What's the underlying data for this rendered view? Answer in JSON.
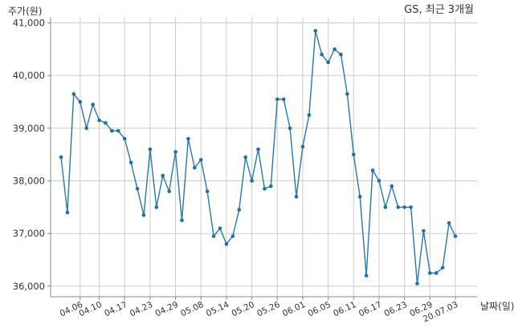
{
  "chart_data": {
    "type": "line",
    "title": "GS, 최근 3개월",
    "ylabel": "주가(원)",
    "xlabel": "날짜(일)",
    "ylim": [
      35800,
      41100
    ],
    "yticks": [
      36000,
      37000,
      38000,
      39000,
      40000,
      41000
    ],
    "ytick_labels": [
      "36,000",
      "37,000",
      "38,000",
      "39,000",
      "40,000",
      "41,000"
    ],
    "xtick_labels": [
      "04.06",
      "04.10",
      "04.17",
      "04.23",
      "04.29",
      "05.08",
      "05.14",
      "05.20",
      "05.26",
      "06.01",
      "06.05",
      "06.11",
      "06.17",
      "06.23",
      "06.29",
      "20.07.03"
    ],
    "xtick_index": [
      3,
      6,
      10,
      14,
      18,
      22,
      26,
      30,
      34,
      38,
      42,
      46,
      50,
      54,
      58,
      62
    ],
    "grid": true,
    "colors": {
      "line": "#2878b0",
      "marker": "#1f6fa8",
      "grid": "#cccccc"
    },
    "values": [
      38450,
      37400,
      39650,
      39500,
      39000,
      39450,
      39150,
      39100,
      38950,
      38950,
      38800,
      38350,
      37850,
      37350,
      38600,
      37500,
      38100,
      37800,
      38550,
      37250,
      38800,
      38250,
      38400,
      37800,
      36950,
      37100,
      36800,
      36950,
      37450,
      38450,
      38000,
      38600,
      37850,
      37900,
      39550,
      39550,
      39000,
      37700,
      38650,
      39250,
      40850,
      40400,
      40250,
      40500,
      40400,
      39650,
      38500,
      37700,
      36200,
      38200,
      38000,
      37500,
      37900,
      37500,
      37500,
      37500,
      36050,
      37050,
      36250,
      36250,
      36350,
      37200,
      36950
    ]
  }
}
